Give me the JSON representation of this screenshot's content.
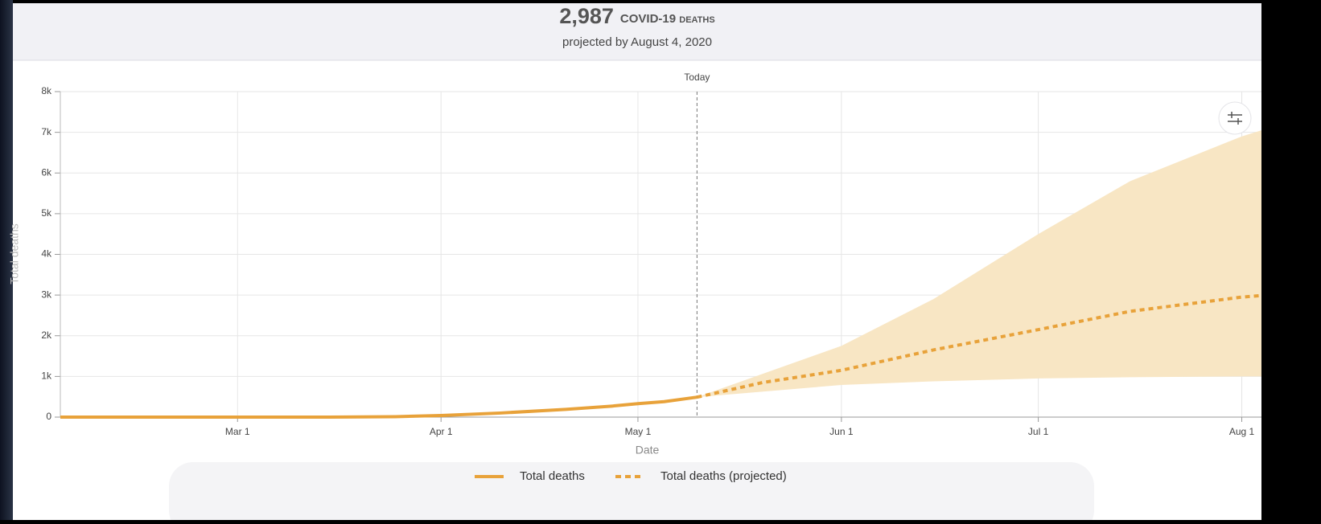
{
  "chart_data": {
    "type": "line",
    "headline": "2,987",
    "title": "COVID-19 deaths",
    "subtitle": "projected by August 4, 2020",
    "xlabel": "Date",
    "ylabel": "Total deaths",
    "xlim": [
      "02-03",
      "08-04"
    ],
    "xticks": [
      {
        "value": "03-01",
        "label": "Mar 1"
      },
      {
        "value": "04-01",
        "label": "Apr 1"
      },
      {
        "value": "05-01",
        "label": "May 1"
      },
      {
        "value": "06-01",
        "label": "Jun 1"
      },
      {
        "value": "07-01",
        "label": "Jul 1"
      },
      {
        "value": "08-01",
        "label": "Aug 1"
      }
    ],
    "ylim": [
      0,
      8000
    ],
    "yticks": [
      0,
      {
        "value": 1000,
        "label": "1k"
      },
      {
        "value": 2000,
        "label": "2k"
      },
      {
        "value": 3000,
        "label": "3k"
      },
      {
        "value": 4000,
        "label": "4k"
      },
      {
        "value": 5000,
        "label": "5k"
      },
      {
        "value": 6000,
        "label": "6k"
      },
      {
        "value": 7000,
        "label": "7k"
      },
      {
        "value": 8000,
        "label": "8k"
      }
    ],
    "grid": true,
    "annotation": {
      "x": "05-10",
      "label": "Today"
    },
    "series": [
      {
        "name": "Total deaths",
        "color": "#e8a23a",
        "dashed": false,
        "x": [
          "02-03",
          "03-01",
          "03-15",
          "03-25",
          "04-01",
          "04-10",
          "04-20",
          "04-27",
          "05-01",
          "05-05",
          "05-10"
        ],
        "values": [
          0,
          0,
          0,
          10,
          40,
          100,
          190,
          270,
          330,
          380,
          490
        ]
      },
      {
        "name": "Total deaths (projected)",
        "color": "#e8a23a",
        "dashed": true,
        "x": [
          "05-10",
          "05-20",
          "06-01",
          "06-15",
          "07-01",
          "07-15",
          "08-01",
          "08-04"
        ],
        "values": [
          490,
          850,
          1150,
          1650,
          2150,
          2600,
          2950,
          2987
        ]
      }
    ],
    "uncertainty": {
      "color": "#f8e6c4",
      "x": [
        "05-10",
        "06-01",
        "06-15",
        "07-01",
        "07-15",
        "08-01",
        "08-04"
      ],
      "lower": [
        490,
        790,
        880,
        950,
        980,
        1000,
        1000
      ],
      "upper": [
        490,
        1750,
        2900,
        4500,
        5800,
        6900,
        7050
      ]
    }
  }
}
